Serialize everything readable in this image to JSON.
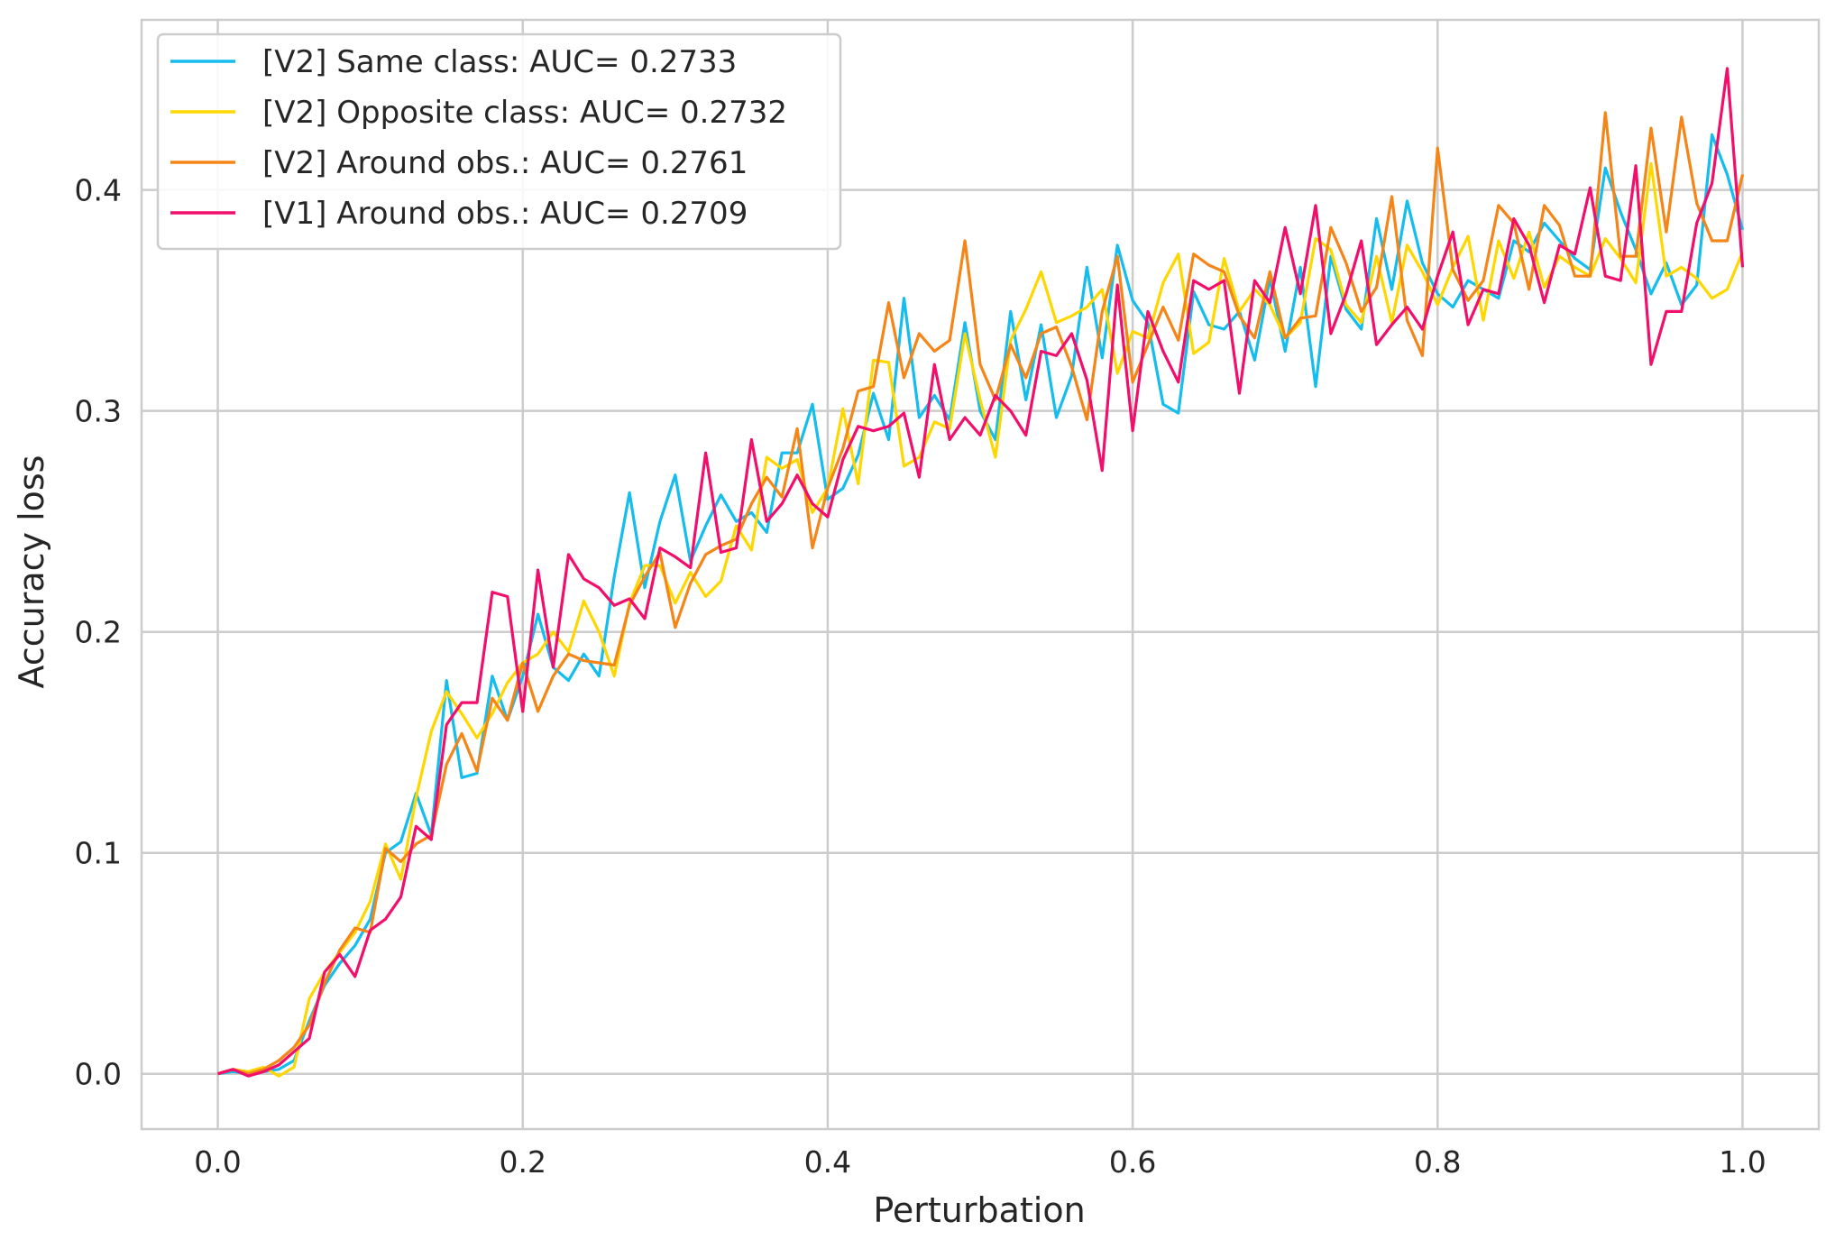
{
  "chart_data": {
    "type": "line",
    "title": "",
    "xlabel": "Perturbation",
    "ylabel": "Accuracy loss",
    "xlim": [
      -0.05,
      1.05
    ],
    "ylim": [
      -0.025,
      0.477
    ],
    "xticks": [
      0.0,
      0.2,
      0.4,
      0.6,
      0.8,
      1.0
    ],
    "xtick_labels": [
      "0.0",
      "0.2",
      "0.4",
      "0.6",
      "0.8",
      "1.0"
    ],
    "yticks": [
      0.0,
      0.1,
      0.2,
      0.3,
      0.4
    ],
    "ytick_labels": [
      "0.0",
      "0.1",
      "0.2",
      "0.3",
      "0.4"
    ],
    "grid": true,
    "legend_position": "top-left",
    "x": [
      0.0,
      0.01,
      0.02,
      0.03,
      0.04,
      0.05,
      0.06,
      0.07,
      0.08,
      0.09,
      0.1,
      0.11,
      0.12,
      0.13,
      0.14,
      0.15,
      0.16,
      0.17,
      0.18,
      0.19,
      0.2,
      0.21,
      0.22,
      0.23,
      0.24,
      0.25,
      0.26,
      0.27,
      0.28,
      0.29,
      0.3,
      0.31,
      0.32,
      0.33,
      0.34,
      0.35,
      0.36,
      0.37,
      0.38,
      0.39,
      0.4,
      0.41,
      0.42,
      0.43,
      0.44,
      0.45,
      0.46,
      0.47,
      0.48,
      0.49,
      0.5,
      0.51,
      0.52,
      0.53,
      0.54,
      0.55,
      0.56,
      0.57,
      0.58,
      0.59,
      0.6,
      0.61,
      0.62,
      0.63,
      0.64,
      0.65,
      0.66,
      0.67,
      0.68,
      0.69,
      0.7,
      0.71,
      0.72,
      0.73,
      0.74,
      0.75,
      0.76,
      0.77,
      0.78,
      0.79,
      0.8,
      0.81,
      0.82,
      0.83,
      0.84,
      0.85,
      0.86,
      0.87,
      0.88,
      0.89,
      0.9,
      0.91,
      0.92,
      0.93,
      0.94,
      0.95,
      0.96,
      0.97,
      0.98,
      0.99,
      1.0
    ],
    "series": [
      {
        "name": "[V2] Same class: AUC= 0.2733",
        "color": "#14bdee",
        "values": [
          0.0,
          0.001,
          0.0,
          0.001,
          0.002,
          0.006,
          0.024,
          0.04,
          0.05,
          0.058,
          0.07,
          0.1,
          0.105,
          0.127,
          0.108,
          0.178,
          0.134,
          0.136,
          0.18,
          0.16,
          0.18,
          0.208,
          0.184,
          0.178,
          0.19,
          0.18,
          0.225,
          0.263,
          0.22,
          0.25,
          0.271,
          0.232,
          0.248,
          0.262,
          0.25,
          0.254,
          0.245,
          0.281,
          0.281,
          0.303,
          0.26,
          0.265,
          0.28,
          0.308,
          0.287,
          0.351,
          0.297,
          0.307,
          0.296,
          0.34,
          0.3,
          0.287,
          0.345,
          0.305,
          0.339,
          0.297,
          0.316,
          0.365,
          0.324,
          0.375,
          0.35,
          0.34,
          0.303,
          0.299,
          0.354,
          0.339,
          0.337,
          0.345,
          0.323,
          0.36,
          0.327,
          0.365,
          0.311,
          0.37,
          0.346,
          0.337,
          0.387,
          0.355,
          0.395,
          0.367,
          0.353,
          0.347,
          0.359,
          0.355,
          0.351,
          0.377,
          0.372,
          0.385,
          0.377,
          0.369,
          0.364,
          0.41,
          0.39,
          0.373,
          0.353,
          0.367,
          0.348,
          0.357,
          0.425,
          0.407,
          0.382
        ]
      },
      {
        "name": "[V2] Opposite class: AUC= 0.2732",
        "color": "#ffd700",
        "values": [
          0.0,
          0.002,
          0.001,
          0.003,
          -0.001,
          0.003,
          0.034,
          0.046,
          0.055,
          0.064,
          0.078,
          0.104,
          0.088,
          0.125,
          0.155,
          0.173,
          0.163,
          0.152,
          0.163,
          0.177,
          0.186,
          0.19,
          0.2,
          0.191,
          0.214,
          0.2,
          0.18,
          0.213,
          0.23,
          0.23,
          0.213,
          0.227,
          0.216,
          0.223,
          0.248,
          0.237,
          0.279,
          0.274,
          0.278,
          0.254,
          0.265,
          0.301,
          0.267,
          0.323,
          0.322,
          0.275,
          0.279,
          0.295,
          0.292,
          0.335,
          0.305,
          0.279,
          0.332,
          0.346,
          0.363,
          0.34,
          0.343,
          0.347,
          0.355,
          0.317,
          0.336,
          0.333,
          0.358,
          0.371,
          0.326,
          0.331,
          0.369,
          0.345,
          0.355,
          0.348,
          0.333,
          0.34,
          0.378,
          0.373,
          0.348,
          0.34,
          0.37,
          0.34,
          0.375,
          0.363,
          0.348,
          0.365,
          0.379,
          0.341,
          0.377,
          0.36,
          0.381,
          0.356,
          0.37,
          0.365,
          0.361,
          0.378,
          0.369,
          0.358,
          0.412,
          0.361,
          0.365,
          0.36,
          0.351,
          0.355,
          0.372
        ]
      },
      {
        "name": "[V2] Around obs.: AUC= 0.2761",
        "color": "#f58517",
        "values": [
          0.0,
          0.002,
          0.0,
          0.002,
          0.006,
          0.012,
          0.022,
          0.041,
          0.056,
          0.066,
          0.064,
          0.102,
          0.096,
          0.104,
          0.108,
          0.14,
          0.154,
          0.137,
          0.17,
          0.16,
          0.186,
          0.164,
          0.18,
          0.19,
          0.187,
          0.186,
          0.185,
          0.212,
          0.225,
          0.236,
          0.202,
          0.222,
          0.235,
          0.239,
          0.242,
          0.258,
          0.27,
          0.261,
          0.292,
          0.238,
          0.265,
          0.283,
          0.309,
          0.311,
          0.349,
          0.315,
          0.335,
          0.327,
          0.332,
          0.377,
          0.321,
          0.305,
          0.33,
          0.315,
          0.335,
          0.338,
          0.32,
          0.296,
          0.345,
          0.37,
          0.313,
          0.33,
          0.347,
          0.332,
          0.371,
          0.366,
          0.363,
          0.343,
          0.333,
          0.363,
          0.333,
          0.342,
          0.343,
          0.383,
          0.367,
          0.345,
          0.356,
          0.397,
          0.341,
          0.325,
          0.419,
          0.364,
          0.35,
          0.359,
          0.393,
          0.385,
          0.355,
          0.393,
          0.384,
          0.361,
          0.361,
          0.435,
          0.37,
          0.37,
          0.428,
          0.381,
          0.433,
          0.394,
          0.377,
          0.377,
          0.407
        ]
      },
      {
        "name": "[V1] Around obs.: AUC= 0.2709",
        "color": "#f20e6b",
        "values": [
          0.0,
          0.002,
          -0.001,
          0.001,
          0.004,
          0.01,
          0.016,
          0.046,
          0.054,
          0.044,
          0.065,
          0.07,
          0.08,
          0.112,
          0.106,
          0.158,
          0.168,
          0.168,
          0.218,
          0.216,
          0.164,
          0.228,
          0.184,
          0.235,
          0.224,
          0.22,
          0.212,
          0.215,
          0.206,
          0.238,
          0.234,
          0.229,
          0.281,
          0.236,
          0.238,
          0.287,
          0.25,
          0.258,
          0.271,
          0.258,
          0.252,
          0.278,
          0.293,
          0.291,
          0.293,
          0.299,
          0.27,
          0.321,
          0.287,
          0.297,
          0.289,
          0.307,
          0.3,
          0.289,
          0.327,
          0.325,
          0.335,
          0.314,
          0.273,
          0.357,
          0.291,
          0.345,
          0.327,
          0.313,
          0.359,
          0.355,
          0.359,
          0.308,
          0.359,
          0.349,
          0.383,
          0.353,
          0.393,
          0.335,
          0.353,
          0.377,
          0.33,
          0.339,
          0.347,
          0.337,
          0.361,
          0.381,
          0.339,
          0.355,
          0.353,
          0.387,
          0.375,
          0.349,
          0.375,
          0.371,
          0.401,
          0.361,
          0.359,
          0.411,
          0.321,
          0.345,
          0.345,
          0.385,
          0.403,
          0.455,
          0.365
        ]
      }
    ]
  }
}
